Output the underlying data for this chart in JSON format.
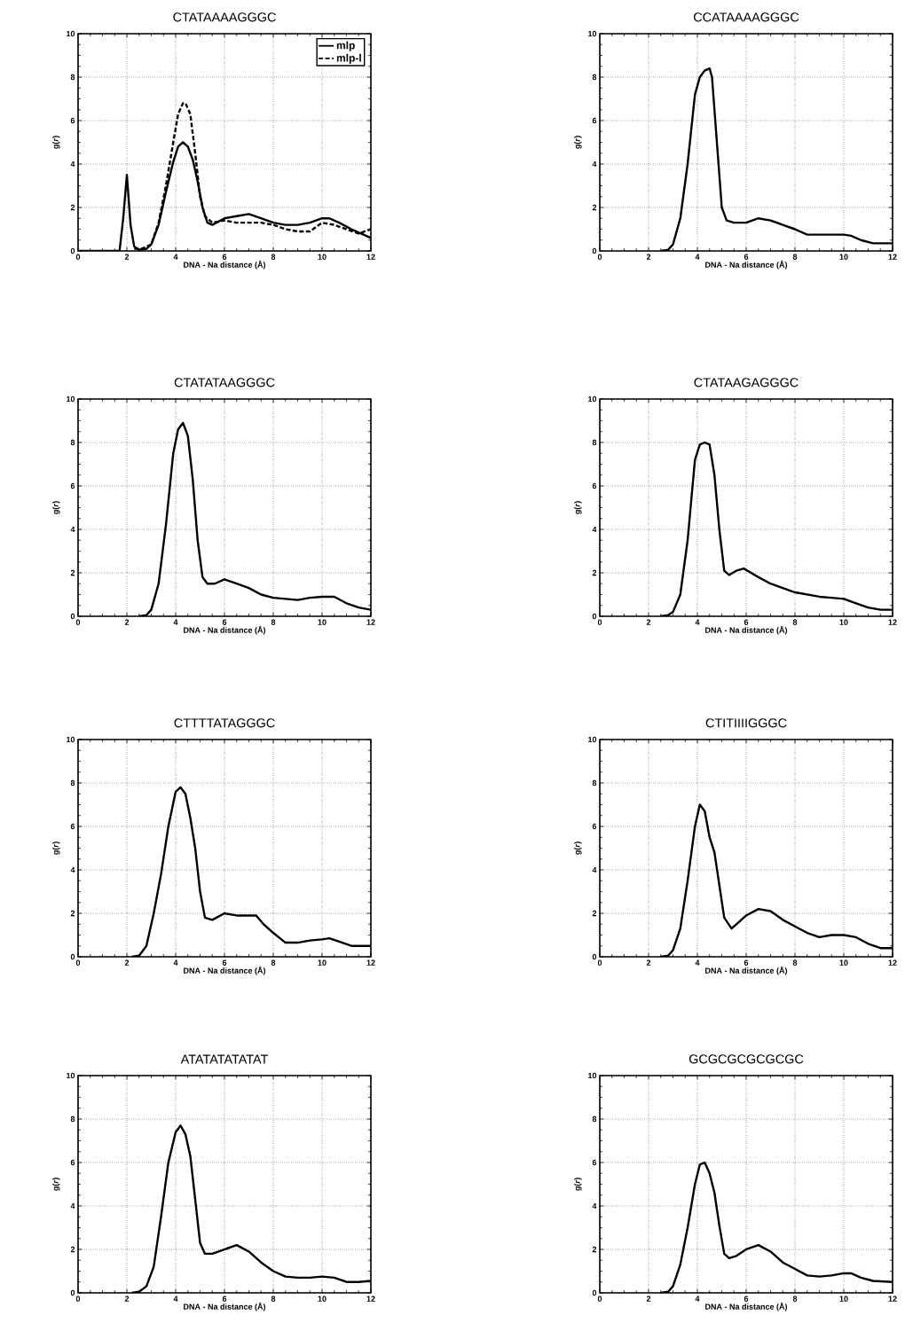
{
  "chart_data": [
    {
      "type": "line",
      "title": "CTATAAAAGGGC",
      "xlabel": "DNA - Na distance (Å)",
      "ylabel": "g(*r*)",
      "xlim": [
        0,
        12
      ],
      "ylim": [
        0,
        10
      ],
      "xticks": [
        0,
        2,
        4,
        6,
        8,
        10,
        12
      ],
      "yticks": [
        0,
        2,
        4,
        6,
        8,
        10
      ],
      "grid": true,
      "legend": "top right",
      "series": [
        {
          "name": "mlp",
          "color": "#000000",
          "line_style": "solid",
          "x": [
            0,
            1.7,
            1.85,
            2.0,
            2.15,
            2.3,
            2.5,
            2.8,
            3.0,
            3.3,
            3.6,
            3.9,
            4.1,
            4.3,
            4.5,
            4.7,
            4.9,
            5.1,
            5.3,
            5.5,
            6,
            6.5,
            7,
            7.5,
            8,
            8.5,
            9,
            9.5,
            10,
            10.3,
            10.7,
            11.2,
            11.6,
            12
          ],
          "values": [
            0,
            0,
            1.5,
            3.5,
            1.2,
            0.2,
            0.05,
            0.1,
            0.3,
            1.2,
            2.7,
            4.1,
            4.8,
            5,
            4.8,
            4.2,
            3.2,
            2,
            1.3,
            1.2,
            1.5,
            1.6,
            1.7,
            1.5,
            1.3,
            1.2,
            1.2,
            1.3,
            1.5,
            1.5,
            1.3,
            1.0,
            0.8,
            0.6
          ]
        },
        {
          "name": "mlp-l",
          "color": "#000000",
          "line_style": "dashed",
          "x": [
            2.3,
            2.6,
            3.0,
            3.3,
            3.6,
            3.9,
            4.1,
            4.3,
            4.4,
            4.6,
            4.8,
            5.0,
            5.2,
            5.5,
            6,
            6.5,
            7,
            7.5,
            8,
            8.5,
            9,
            9.5,
            10,
            10.5,
            11,
            11.5,
            12
          ],
          "values": [
            0.1,
            0.1,
            0.3,
            1.3,
            3,
            5,
            6.3,
            6.8,
            6.8,
            6.3,
            4.5,
            2.5,
            1.6,
            1.3,
            1.4,
            1.3,
            1.3,
            1.3,
            1.2,
            1.0,
            0.9,
            0.9,
            1.3,
            1.2,
            1.0,
            0.8,
            1.0
          ]
        }
      ]
    },
    {
      "type": "line",
      "title": "CCATAAAAGGGC",
      "xlabel": "DNA - Na distance (Å)",
      "ylabel": "g(*r*)",
      "xlim": [
        0,
        12
      ],
      "ylim": [
        0,
        10
      ],
      "xticks": [
        0,
        2,
        4,
        6,
        8,
        10,
        12
      ],
      "yticks": [
        0,
        2,
        4,
        6,
        8,
        10
      ],
      "grid": true,
      "series": [
        {
          "color": "#000000",
          "x": [
            2.5,
            2.8,
            3.0,
            3.3,
            3.6,
            3.9,
            4.1,
            4.3,
            4.5,
            4.6,
            4.8,
            5.0,
            5.2,
            5.5,
            6,
            6.5,
            7,
            7.5,
            8,
            8.5,
            9,
            9.5,
            10,
            10.3,
            10.7,
            11.2,
            12
          ],
          "values": [
            0,
            0.05,
            0.3,
            1.5,
            4,
            7.2,
            8,
            8.3,
            8.4,
            8,
            5,
            2,
            1.4,
            1.3,
            1.3,
            1.5,
            1.4,
            1.2,
            1.0,
            0.75,
            0.75,
            0.75,
            0.75,
            0.7,
            0.5,
            0.35,
            0.35
          ]
        }
      ]
    },
    {
      "type": "line",
      "title": "CTATATAAGGGC",
      "xlabel": "DNA - Na distance (Å)",
      "ylabel": "g(*r*)",
      "xlim": [
        0,
        12
      ],
      "ylim": [
        0,
        10
      ],
      "xticks": [
        0,
        2,
        4,
        6,
        8,
        10,
        12
      ],
      "yticks": [
        0,
        2,
        4,
        6,
        8,
        10
      ],
      "grid": true,
      "series": [
        {
          "color": "#000000",
          "x": [
            2.5,
            2.8,
            3.0,
            3.3,
            3.6,
            3.9,
            4.1,
            4.3,
            4.5,
            4.7,
            4.9,
            5.1,
            5.3,
            5.6,
            6,
            6.5,
            7,
            7.5,
            8,
            8.5,
            9,
            9.5,
            10,
            10.5,
            11,
            11.5,
            12
          ],
          "values": [
            0,
            0.05,
            0.3,
            1.5,
            4.2,
            7.5,
            8.6,
            8.9,
            8.3,
            6.3,
            3.5,
            1.8,
            1.5,
            1.5,
            1.7,
            1.5,
            1.3,
            1.0,
            0.85,
            0.8,
            0.75,
            0.85,
            0.9,
            0.9,
            0.6,
            0.4,
            0.3
          ]
        }
      ]
    },
    {
      "type": "line",
      "title": "CTATAAGAGGGC",
      "xlabel": "DNA - Na distance (Å)",
      "ylabel": "g(*r*)",
      "xlim": [
        0,
        12
      ],
      "ylim": [
        0,
        10
      ],
      "xticks": [
        0,
        2,
        4,
        6,
        8,
        10,
        12
      ],
      "yticks": [
        0,
        2,
        4,
        6,
        8,
        10
      ],
      "grid": true,
      "series": [
        {
          "color": "#000000",
          "x": [
            2.5,
            2.8,
            3.0,
            3.3,
            3.6,
            3.9,
            4.1,
            4.3,
            4.5,
            4.7,
            4.9,
            5.1,
            5.3,
            5.6,
            5.9,
            6.2,
            6.5,
            7,
            7.5,
            8,
            8.5,
            9,
            9.5,
            10,
            10.5,
            11,
            11.5,
            12
          ],
          "values": [
            0,
            0.05,
            0.2,
            1,
            3.5,
            7.2,
            7.9,
            8,
            7.9,
            6.5,
            4,
            2.1,
            1.9,
            2.1,
            2.2,
            2,
            1.8,
            1.5,
            1.3,
            1.1,
            1.0,
            0.9,
            0.85,
            0.8,
            0.6,
            0.4,
            0.3,
            0.3
          ]
        }
      ]
    },
    {
      "type": "line",
      "title": "CTTTTATAGGGC",
      "xlabel": "DNA - Na distance (Å)",
      "ylabel": "g(*r*)",
      "xlim": [
        0,
        12
      ],
      "ylim": [
        0,
        10
      ],
      "xticks": [
        0,
        2,
        4,
        6,
        8,
        10,
        12
      ],
      "yticks": [
        0,
        2,
        4,
        6,
        8,
        10
      ],
      "grid": true,
      "series": [
        {
          "color": "#000000",
          "x": [
            2.2,
            2.5,
            2.8,
            3.1,
            3.4,
            3.7,
            4.0,
            4.2,
            4.4,
            4.6,
            4.8,
            5.0,
            5.2,
            5.5,
            6,
            6.5,
            7,
            7.3,
            7.6,
            8,
            8.5,
            9,
            9.5,
            10,
            10.3,
            10.7,
            11.2,
            12
          ],
          "values": [
            0,
            0.05,
            0.5,
            2,
            3.8,
            6,
            7.6,
            7.8,
            7.5,
            6.4,
            5,
            3,
            1.8,
            1.7,
            2,
            1.9,
            1.9,
            1.9,
            1.5,
            1.1,
            0.65,
            0.65,
            0.75,
            0.8,
            0.85,
            0.7,
            0.5,
            0.5
          ]
        }
      ]
    },
    {
      "type": "line",
      "title": "CTITIIIIGGGC",
      "xlabel": "DNA - Na distance (Å)",
      "ylabel": "g(*r*)",
      "xlim": [
        0,
        12
      ],
      "ylim": [
        0,
        10
      ],
      "xticks": [
        0,
        2,
        4,
        6,
        8,
        10,
        12
      ],
      "yticks": [
        0,
        2,
        4,
        6,
        8,
        10
      ],
      "grid": true,
      "series": [
        {
          "color": "#000000",
          "x": [
            2.5,
            2.8,
            3.0,
            3.3,
            3.6,
            3.9,
            4.1,
            4.3,
            4.5,
            4.7,
            4.9,
            5.1,
            5.4,
            5.7,
            6,
            6.5,
            7,
            7.5,
            8,
            8.5,
            9,
            9.5,
            10,
            10.5,
            11,
            11.5,
            12
          ],
          "values": [
            0,
            0.05,
            0.3,
            1.3,
            3.5,
            6,
            7,
            6.7,
            5.5,
            4.8,
            3.3,
            1.8,
            1.3,
            1.6,
            1.9,
            2.2,
            2.1,
            1.7,
            1.4,
            1.1,
            0.9,
            1.0,
            1.0,
            0.9,
            0.6,
            0.4,
            0.4
          ]
        }
      ]
    },
    {
      "type": "line",
      "title": "ATATATATATAT",
      "xlabel": "DNA - Na distance (Å)",
      "ylabel": "g(*r*)",
      "xlim": [
        0,
        12
      ],
      "ylim": [
        0,
        10
      ],
      "xticks": [
        0,
        2,
        4,
        6,
        8,
        10,
        12
      ],
      "yticks": [
        0,
        2,
        4,
        6,
        8,
        10
      ],
      "grid": true,
      "series": [
        {
          "color": "#000000",
          "x": [
            2.2,
            2.5,
            2.8,
            3.1,
            3.4,
            3.7,
            4.0,
            4.2,
            4.4,
            4.6,
            4.8,
            5.0,
            5.2,
            5.5,
            6,
            6.5,
            7,
            7.5,
            8,
            8.5,
            9,
            9.5,
            10,
            10.5,
            11,
            11.5,
            12
          ],
          "values": [
            0,
            0.05,
            0.3,
            1.2,
            3.5,
            6,
            7.4,
            7.7,
            7.3,
            6.3,
            4.3,
            2.3,
            1.8,
            1.8,
            2,
            2.2,
            1.9,
            1.4,
            1.0,
            0.75,
            0.7,
            0.7,
            0.75,
            0.7,
            0.5,
            0.5,
            0.55
          ]
        }
      ]
    },
    {
      "type": "line",
      "title": "GCGCGCGCGCGC",
      "xlabel": "DNA - Na distance (Å)",
      "ylabel": "g(*r*)",
      "xlim": [
        0,
        12
      ],
      "ylim": [
        0,
        10
      ],
      "xticks": [
        0,
        2,
        4,
        6,
        8,
        10,
        12
      ],
      "yticks": [
        0,
        2,
        4,
        6,
        8,
        10
      ],
      "grid": true,
      "series": [
        {
          "color": "#000000",
          "x": [
            2.5,
            2.8,
            3.0,
            3.3,
            3.6,
            3.9,
            4.1,
            4.3,
            4.5,
            4.7,
            4.9,
            5.1,
            5.3,
            5.6,
            6,
            6.5,
            7,
            7.5,
            8,
            8.5,
            9,
            9.5,
            10,
            10.3,
            10.7,
            11.2,
            12
          ],
          "values": [
            0,
            0.05,
            0.3,
            1.3,
            3,
            5,
            5.9,
            6,
            5.5,
            4.6,
            3.1,
            1.8,
            1.6,
            1.7,
            2,
            2.2,
            1.9,
            1.4,
            1.1,
            0.8,
            0.75,
            0.8,
            0.9,
            0.9,
            0.7,
            0.55,
            0.5
          ]
        }
      ]
    }
  ]
}
